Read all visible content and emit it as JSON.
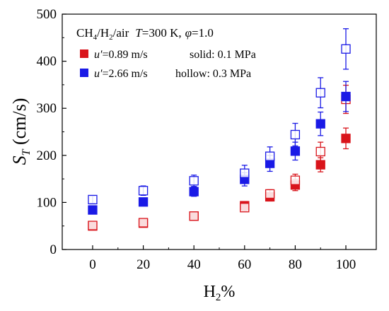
{
  "chart_data": {
    "type": "scatter",
    "annotation": {
      "mixture": "CH",
      "sub1": "4",
      "sep1": "/H",
      "sub2": "2",
      "sep2": "/air",
      "t_symbol": "T",
      "t_value": "=300 K,",
      "phi_symbol": "φ",
      "phi_value": "=1.0"
    },
    "legend": [
      {
        "symbol": "u",
        "prime": "′",
        "text": "=0.89 m/s",
        "color": "#d9141b"
      },
      {
        "symbol": "u",
        "prime": "′",
        "text": "=2.66 m/s",
        "color": "#1a1ae6"
      }
    ],
    "style_legend": [
      "solid: 0.1 MPa",
      "hollow: 0.3 MPa"
    ],
    "xlabel": {
      "main": "H",
      "sub": "2",
      "suffix": "%"
    },
    "ylabel": {
      "main": "S",
      "sub": "T",
      "suffix": " (cm/s)"
    },
    "xlim": [
      -12,
      112
    ],
    "ylim": [
      0,
      500
    ],
    "xticks": [
      0,
      20,
      40,
      60,
      80,
      100
    ],
    "yticks": [
      0,
      100,
      200,
      300,
      400,
      500
    ],
    "x": [
      0,
      20,
      40,
      60,
      70,
      80,
      90,
      100
    ],
    "series": [
      {
        "u": "0.89",
        "pressure": "0.1",
        "fill": "solid",
        "color": "#d9141b",
        "values": [
          50,
          56,
          71,
          93,
          112,
          137,
          180,
          236
        ],
        "errors": [
          4,
          4,
          5,
          8,
          9,
          12,
          15,
          22
        ]
      },
      {
        "u": "0.89",
        "pressure": "0.3",
        "fill": "hollow",
        "color": "#d9141b",
        "values": [
          51,
          57,
          71,
          89,
          118,
          147,
          208,
          319
        ],
        "errors": [
          4,
          5,
          5,
          7,
          9,
          13,
          20,
          30
        ]
      },
      {
        "u": "2.66",
        "pressure": "0.1",
        "fill": "solid",
        "color": "#1a1ae6",
        "values": [
          84,
          101,
          123,
          149,
          183,
          209,
          267,
          325
        ],
        "errors": [
          6,
          8,
          10,
          14,
          17,
          19,
          25,
          32
        ]
      },
      {
        "u": "2.66",
        "pressure": "0.3",
        "fill": "hollow",
        "color": "#1a1ae6",
        "values": [
          106,
          125,
          146,
          162,
          198,
          244,
          333,
          426
        ],
        "errors": [
          8,
          10,
          12,
          17,
          20,
          24,
          32,
          43
        ]
      }
    ],
    "grid": false
  }
}
